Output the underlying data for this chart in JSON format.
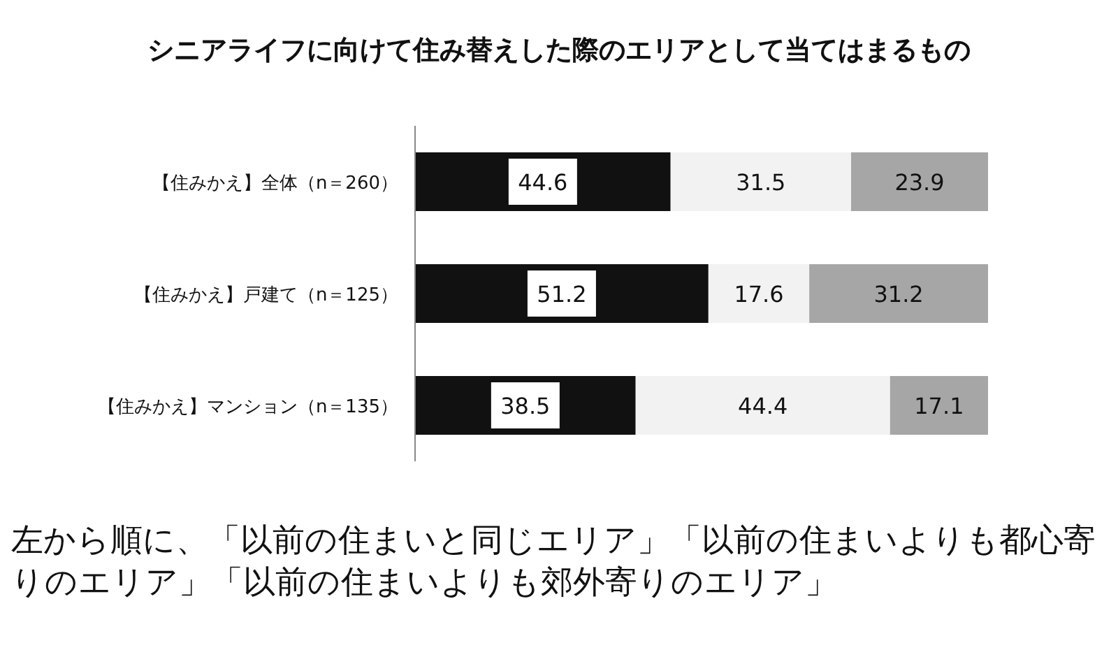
{
  "chart_data": {
    "type": "bar",
    "orientation": "horizontal",
    "stacked": true,
    "data_labels": true,
    "title": "シニアライフに向けて住み替えした際のエリアとして当てはまるもの",
    "categories": [
      "【住みかえ】全体（n＝260）",
      "【住みかえ】戸建て（n＝125）",
      "【住みかえ】マンション（n＝135）"
    ],
    "series": [
      {
        "color": "#111111",
        "values": [
          44.6,
          51.2,
          38.5
        ]
      },
      {
        "color": "#f2f2f2",
        "values": [
          31.5,
          17.6,
          44.4
        ]
      },
      {
        "color": "#a6a6a6",
        "values": [
          23.9,
          31.2,
          17.1
        ]
      }
    ],
    "annotations": [
      "左から順に、「以前の住まいと同じエリア」「以前の住まいよりも都心寄りのエリア」「以前の住まいよりも郊外寄りのエリア」"
    ]
  }
}
